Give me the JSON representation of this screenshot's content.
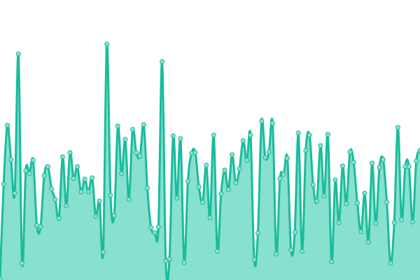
{
  "chart_data": {
    "type": "area",
    "title": "",
    "xlabel": "",
    "ylabel": "",
    "ylim": [
      0,
      400
    ],
    "grid": false,
    "legend": "none",
    "smooth": true,
    "colors": {
      "line": "#1abc9c",
      "fill": "#88e0cf",
      "point_fill": "#8ee0cf",
      "point_stroke": "#1abc9c"
    },
    "values": [
      2,
      137,
      221,
      172,
      124,
      323,
      24,
      156,
      152,
      171,
      78,
      76,
      149,
      162,
      130,
      115,
      88,
      176,
      106,
      182,
      145,
      162,
      126,
      144,
      126,
      146,
      91,
      113,
      40,
      337,
      121,
      92,
      220,
      152,
      201,
      115,
      215,
      182,
      177,
      222,
      131,
      75,
      68,
      76,
      312,
      27,
      30,
      206,
      117,
      202,
      25,
      141,
      181,
      182,
      133,
      111,
      164,
      89,
      207,
      41,
      123,
      157,
      129,
      179,
      139,
      159,
      199,
      171,
      207,
      29,
      67,
      227,
      175,
      183,
      224,
      37,
      145,
      151,
      174,
      43,
      68,
      210,
      41,
      185,
      207,
      136,
      113,
      192,
      120,
      208,
      26,
      143,
      82,
      163,
      109,
      183,
      168,
      110,
      69,
      124,
      54,
      167,
      81,
      161,
      172,
      111,
      24,
      82,
      218,
      86,
      162,
      162,
      83,
      170,
      185
    ]
  }
}
